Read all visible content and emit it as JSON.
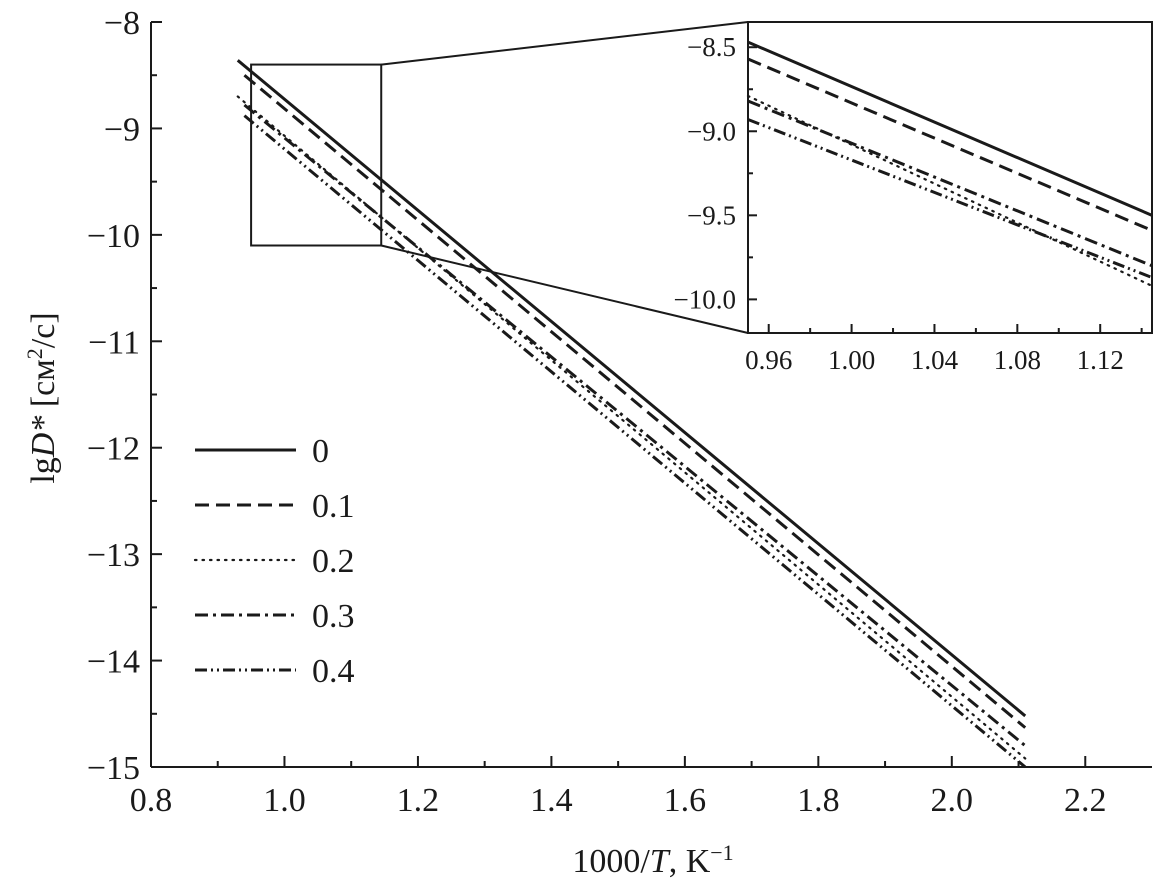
{
  "chart_data": {
    "type": "line",
    "xlabel": {
      "pre": "1000/",
      "italic": "T",
      "post": ", K",
      "sup": "−1"
    },
    "ylabel": {
      "pre": "lg",
      "italic": "D*",
      "post": " [см",
      "sup": "2",
      "post2": "/с]"
    },
    "xlim": [
      0.8,
      2.3
    ],
    "ylim": [
      -15,
      -8
    ],
    "xticks": [
      0.8,
      1.0,
      1.2,
      1.4,
      1.6,
      1.8,
      2.0,
      2.2
    ],
    "xtick_labels": [
      "0.8",
      "1.0",
      "1.2",
      "1.4",
      "1.6",
      "1.8",
      "2.0",
      "2.2"
    ],
    "yticks": [
      -8,
      -9,
      -10,
      -11,
      -12,
      -13,
      -14,
      -15
    ],
    "ytick_labels": [
      "−8",
      "−9",
      "−10",
      "−11",
      "−12",
      "−13",
      "−14",
      "−15"
    ],
    "legend_position": "lower-left",
    "series": [
      {
        "name": "0",
        "dash": "solid",
        "x": [
          0.93,
          2.11
        ],
        "y": [
          -8.36,
          -14.52
        ]
      },
      {
        "name": "0.1",
        "dash": "dashed",
        "x": [
          0.94,
          2.11
        ],
        "y": [
          -8.5,
          -14.63
        ]
      },
      {
        "name": "0.2",
        "dash": "dotted",
        "x": [
          0.93,
          2.11
        ],
        "y": [
          -8.7,
          -14.92
        ]
      },
      {
        "name": "0.3",
        "dash": "dash-dot",
        "x": [
          0.94,
          2.11
        ],
        "y": [
          -8.78,
          -14.8
        ]
      },
      {
        "name": "0.4",
        "dash": "dash-dot-dot",
        "x": [
          0.94,
          2.11
        ],
        "y": [
          -8.88,
          -15.0
        ]
      }
    ],
    "zoom_box": {
      "x": [
        0.95,
        1.145
      ],
      "y": [
        -10.1,
        -8.4
      ]
    },
    "inset": {
      "xlim": [
        0.95,
        1.145
      ],
      "ylim": [
        -10.2,
        -8.35
      ],
      "xticks": [
        0.96,
        1.0,
        1.04,
        1.08,
        1.12
      ],
      "xtick_labels": [
        "0.96",
        "1.00",
        "1.04",
        "1.08",
        "1.12"
      ],
      "yticks": [
        -8.5,
        -9.0,
        -9.5,
        -10.0
      ],
      "ytick_labels": [
        "−8.5",
        "−9.0",
        "−9.5",
        "−10.0"
      ],
      "series": [
        {
          "name": "0",
          "y": [
            -8.47,
            -9.5
          ]
        },
        {
          "name": "0.1",
          "y": [
            -8.57,
            -9.59
          ]
        },
        {
          "name": "0.2",
          "y": [
            -8.79,
            -9.92
          ]
        },
        {
          "name": "0.3",
          "y": [
            -8.82,
            -9.8
          ]
        },
        {
          "name": "0.4",
          "y": [
            -8.93,
            -9.87
          ]
        }
      ]
    }
  }
}
